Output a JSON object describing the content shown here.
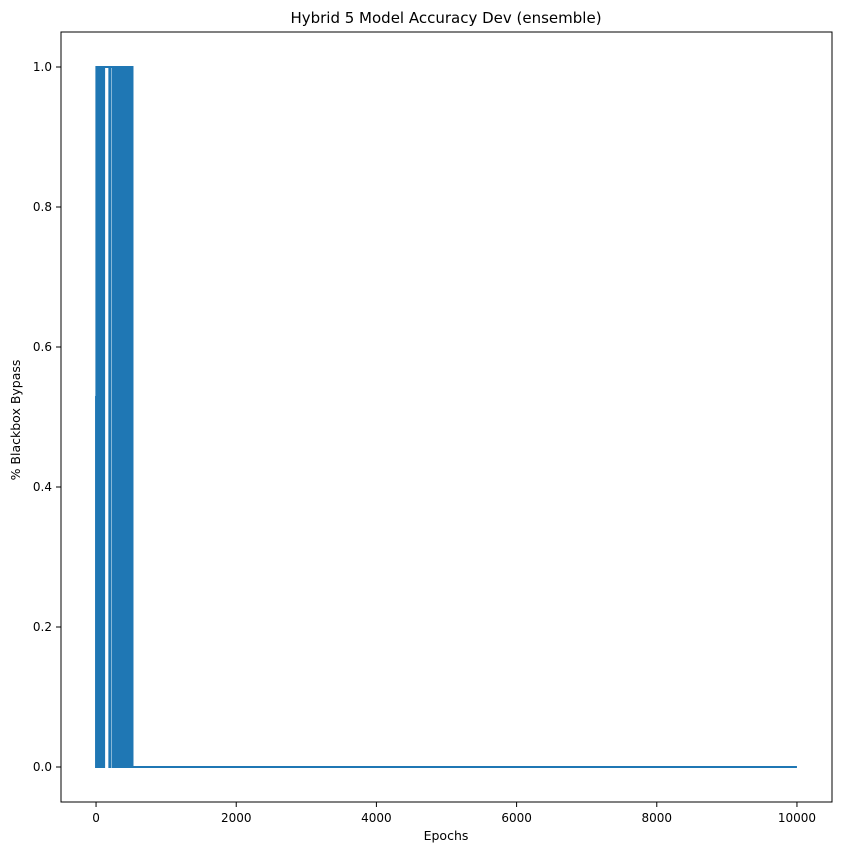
{
  "chart_data": {
    "type": "line",
    "title": "Hybrid 5 Model Accuracy Dev (ensemble)",
    "xlabel": "Epochs",
    "ylabel": "% Blackbox Bypass",
    "xlim": [
      -500,
      10500
    ],
    "ylim": [
      -0.05,
      1.05
    ],
    "x_ticks": [
      0,
      2000,
      4000,
      6000,
      8000,
      10000
    ],
    "x_tick_labels": [
      "0",
      "2000",
      "4000",
      "6000",
      "8000",
      "10000"
    ],
    "y_ticks": [
      0.0,
      0.2,
      0.4,
      0.6,
      0.8,
      1.0
    ],
    "y_tick_labels": [
      "0.0",
      "0.2",
      "0.4",
      "0.6",
      "0.8",
      "1.0"
    ],
    "grid": false,
    "series": [
      {
        "color": "#1f77b4",
        "x": [
          0,
          0,
          5,
          5,
          15,
          15,
          25,
          25,
          35,
          35,
          40,
          40,
          50,
          50,
          55,
          55,
          65,
          65,
          75,
          75,
          85,
          85,
          95,
          95,
          105,
          105,
          115,
          115,
          190,
          190,
          200,
          200,
          235,
          235,
          255,
          255,
          275,
          275,
          290,
          290,
          305,
          305,
          320,
          320,
          335,
          335,
          350,
          350,
          365,
          365,
          390,
          390,
          410,
          410,
          425,
          425,
          440,
          440,
          460,
          460,
          480,
          480,
          500,
          500,
          520,
          520,
          10000
        ],
        "y": [
          0.53,
          0.0,
          0.0,
          1.0,
          1.0,
          0.0,
          0.0,
          1.0,
          1.0,
          0.0,
          0.0,
          1.0,
          1.0,
          0.0,
          0.0,
          1.0,
          1.0,
          0.0,
          0.0,
          1.0,
          1.0,
          0.0,
          0.0,
          1.0,
          1.0,
          0.0,
          0.0,
          1.0,
          1.0,
          0.0,
          0.0,
          1.0,
          1.0,
          0.0,
          0.0,
          1.0,
          1.0,
          0.0,
          0.0,
          1.0,
          1.0,
          0.0,
          0.0,
          1.0,
          1.0,
          0.0,
          0.0,
          1.0,
          1.0,
          0.0,
          0.0,
          1.0,
          1.0,
          0.0,
          0.0,
          1.0,
          1.0,
          0.0,
          0.0,
          1.0,
          1.0,
          0.0,
          0.0,
          1.0,
          1.0,
          0.0,
          0.0
        ]
      }
    ]
  }
}
